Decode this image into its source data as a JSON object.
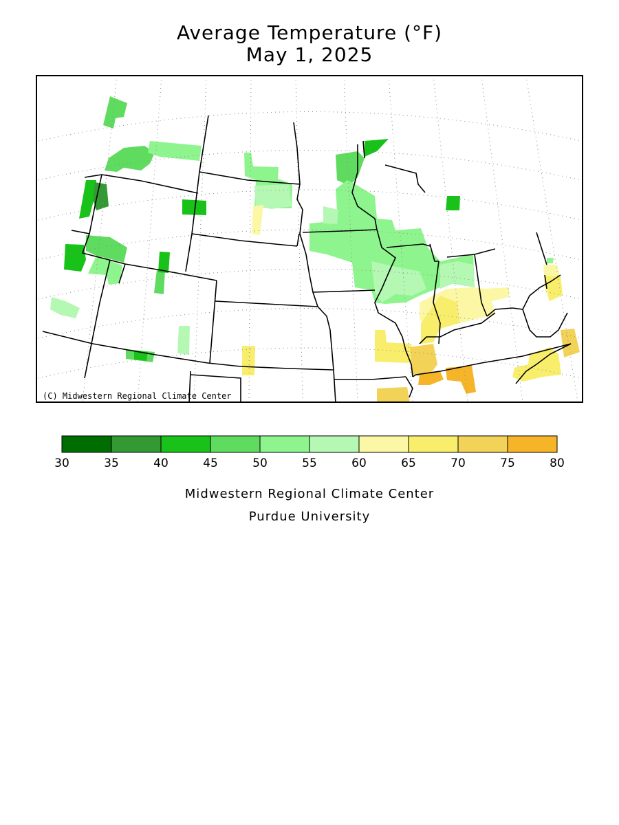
{
  "title": {
    "line1": "Average Temperature (°F)",
    "line2": "May 1, 2025"
  },
  "map": {
    "copyright": "(C) Midwestern Regional Climate Center"
  },
  "legend": {
    "bins": [
      {
        "from": 30,
        "to": 35,
        "color": "#006d00"
      },
      {
        "from": 35,
        "to": 40,
        "color": "#339933"
      },
      {
        "from": 40,
        "to": 45,
        "color": "#19c219"
      },
      {
        "from": 45,
        "to": 50,
        "color": "#5fdc5f"
      },
      {
        "from": 50,
        "to": 55,
        "color": "#8ef58e"
      },
      {
        "from": 55,
        "to": 60,
        "color": "#b4f8b4"
      },
      {
        "from": 60,
        "to": 65,
        "color": "#fcf7a4"
      },
      {
        "from": 65,
        "to": 70,
        "color": "#f8ee6c"
      },
      {
        "from": 70,
        "to": 75,
        "color": "#f2d257"
      },
      {
        "from": 75,
        "to": 80,
        "color": "#f6b428"
      }
    ],
    "tick_labels": [
      "30",
      "35",
      "40",
      "45",
      "50",
      "55",
      "60",
      "65",
      "70",
      "75",
      "80"
    ]
  },
  "credits": {
    "line1": "Midwestern Regional Climate Center",
    "line2": "Purdue University"
  }
}
